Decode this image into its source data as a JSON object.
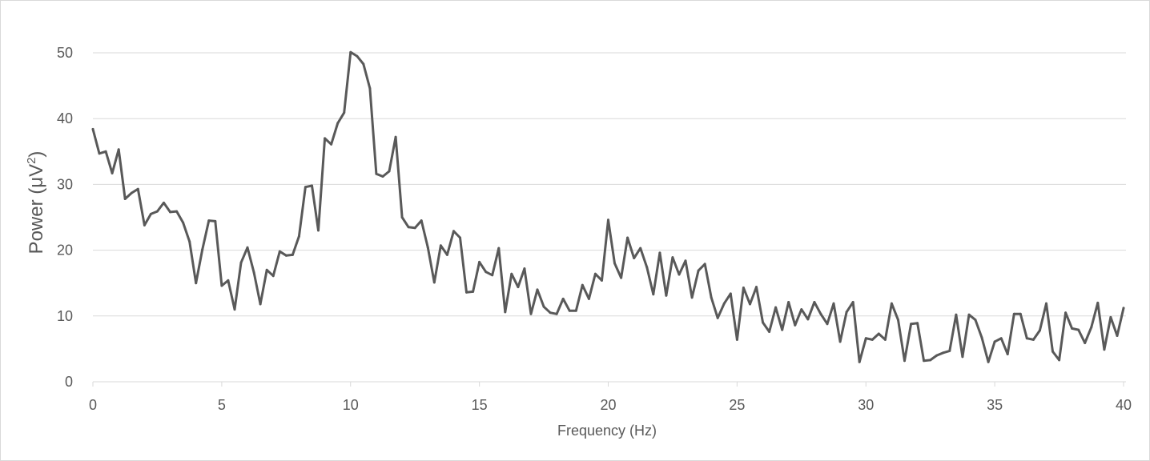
{
  "chart_data": {
    "type": "line",
    "xlabel": "Frequency (Hz)",
    "ylabel": "Power (μV²)",
    "ylabel_base": "Power (μV",
    "ylabel_sup": "2",
    "ylabel_close": ")",
    "xlim": [
      0,
      40
    ],
    "ylim": [
      0,
      50
    ],
    "x_ticks": [
      0,
      5,
      10,
      15,
      20,
      25,
      30,
      35,
      40
    ],
    "y_ticks": [
      0,
      10,
      20,
      30,
      40,
      50
    ],
    "grid": "horizontal",
    "line_color": "#595959",
    "grid_color": "#d9d9d9",
    "series": [
      {
        "x": [
          0.0,
          0.25,
          0.5,
          0.75,
          1.0,
          1.25,
          1.5,
          1.75,
          2.0,
          2.25,
          2.5,
          2.75,
          3.0,
          3.25,
          3.5,
          3.75,
          4.0,
          4.25,
          4.5,
          4.75,
          5.0,
          5.25,
          5.5,
          5.75,
          6.0,
          6.25,
          6.5,
          6.75,
          7.0,
          7.25,
          7.5,
          7.75,
          8.0,
          8.25,
          8.5,
          8.75,
          9.0,
          9.25,
          9.5,
          9.75,
          10.0,
          10.25,
          10.5,
          10.75,
          11.0,
          11.25,
          11.5,
          11.75,
          12.0,
          12.25,
          12.5,
          12.75,
          13.0,
          13.25,
          13.5,
          13.75,
          14.0,
          14.25,
          14.5,
          14.75,
          15.0,
          15.25,
          15.5,
          15.75,
          16.0,
          16.25,
          16.5,
          16.75,
          17.0,
          17.25,
          17.5,
          17.75,
          18.0,
          18.25,
          18.5,
          18.75,
          19.0,
          19.25,
          19.5,
          19.75,
          20.0,
          20.25,
          20.5,
          20.75,
          21.0,
          21.25,
          21.5,
          21.75,
          22.0,
          22.25,
          22.5,
          22.75,
          23.0,
          23.25,
          23.5,
          23.75,
          24.0,
          24.25,
          24.5,
          24.75,
          25.0,
          25.25,
          25.5,
          25.75,
          26.0,
          26.25,
          26.5,
          26.75,
          27.0,
          27.25,
          27.5,
          27.75,
          28.0,
          28.25,
          28.5,
          28.75,
          29.0,
          29.25,
          29.5,
          29.75,
          30.0,
          30.25,
          30.5,
          30.75,
          31.0,
          31.25,
          31.5,
          31.75,
          32.0,
          32.25,
          32.5,
          32.75,
          33.0,
          33.25,
          33.5,
          33.75,
          34.0,
          34.25,
          34.5,
          34.75,
          35.0,
          35.25,
          35.5,
          35.75,
          36.0,
          36.25,
          36.5,
          36.75,
          37.0,
          37.25,
          37.5,
          37.75,
          38.0,
          38.25,
          38.5,
          38.75,
          39.0,
          39.25,
          39.5,
          39.75,
          40.0
        ],
        "values": [
          38.4,
          34.7,
          35.0,
          31.7,
          35.3,
          27.8,
          28.7,
          29.3,
          23.8,
          25.5,
          25.9,
          27.2,
          25.8,
          25.9,
          24.2,
          21.3,
          15.0,
          20.1,
          24.5,
          24.4,
          14.6,
          15.4,
          11.0,
          18.1,
          20.4,
          16.6,
          11.8,
          17.0,
          16.1,
          19.8,
          19.2,
          19.3,
          22.1,
          29.6,
          29.8,
          23.0,
          37.0,
          36.1,
          39.3,
          40.9,
          50.1,
          49.5,
          48.3,
          44.6,
          31.6,
          31.2,
          32.0,
          37.2,
          25.0,
          23.5,
          23.4,
          24.5,
          20.4,
          15.1,
          20.7,
          19.3,
          22.9,
          21.9,
          13.6,
          13.7,
          18.2,
          16.7,
          16.2,
          20.3,
          10.6,
          16.4,
          14.4,
          17.2,
          10.3,
          14.0,
          11.4,
          10.5,
          10.3,
          12.6,
          10.8,
          10.8,
          14.7,
          12.6,
          16.4,
          15.4,
          24.6,
          18.0,
          15.8,
          21.9,
          18.8,
          20.3,
          17.4,
          13.3,
          19.6,
          13.1,
          18.9,
          16.3,
          18.4,
          12.8,
          16.9,
          17.9,
          12.8,
          9.7,
          11.9,
          13.4,
          6.4,
          14.3,
          11.8,
          14.4,
          9.0,
          7.6,
          11.3,
          7.9,
          12.1,
          8.6,
          11.0,
          9.5,
          12.1,
          10.3,
          8.8,
          11.9,
          6.1,
          10.6,
          12.1,
          3.0,
          6.6,
          6.4,
          7.3,
          6.4,
          11.9,
          9.4,
          3.2,
          8.8,
          8.9,
          3.2,
          3.3,
          4.0,
          4.4,
          4.7,
          10.2,
          3.8,
          10.2,
          9.4,
          6.7,
          3.0,
          6.1,
          6.6,
          4.2,
          10.3,
          10.3,
          6.6,
          6.4,
          7.8,
          11.9,
          4.6,
          3.3,
          10.5,
          8.1,
          7.9,
          5.9,
          8.3,
          12.0,
          4.9,
          9.8,
          7.0,
          11.2
        ]
      }
    ]
  }
}
